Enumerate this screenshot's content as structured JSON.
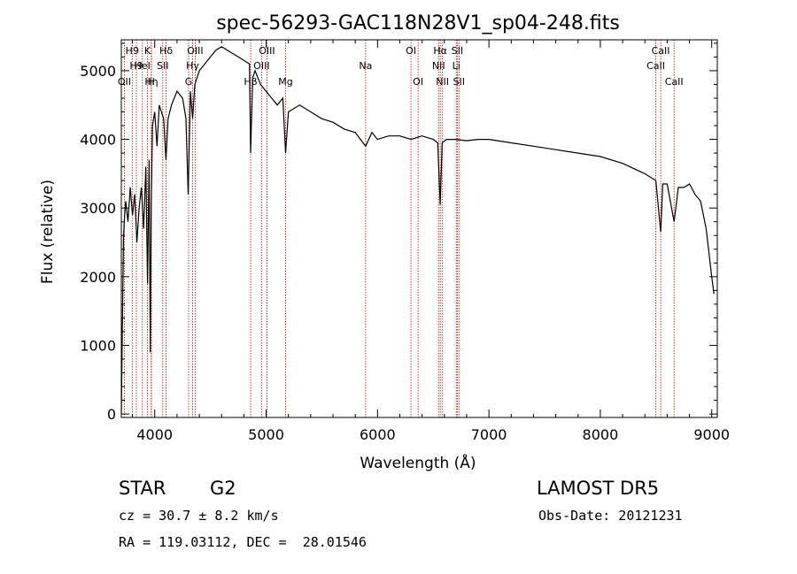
{
  "chart_data": {
    "type": "line",
    "title": "spec-56293-GAC118N28V1_sp04-248.fits",
    "xlabel": "Wavelength (Å)",
    "ylabel": "Flux (relative)",
    "xlim": [
      3700,
      9050
    ],
    "ylim": [
      -50,
      5450
    ],
    "xticks": [
      4000,
      5000,
      6000,
      7000,
      8000,
      9000
    ],
    "yticks": [
      0,
      1000,
      2000,
      3000,
      4000,
      5000
    ],
    "grid": false,
    "series": [
      {
        "x": [
          3700,
          3710,
          3720,
          3730,
          3740,
          3760,
          3780,
          3800,
          3820,
          3840,
          3860,
          3880,
          3900,
          3920,
          3935,
          3950,
          3960,
          3968,
          3980,
          4000,
          4020,
          4040,
          4060,
          4080,
          4101,
          4120,
          4150,
          4200,
          4250,
          4280,
          4300,
          4320,
          4340,
          4360,
          4400,
          4450,
          4500,
          4550,
          4600,
          4650,
          4700,
          4750,
          4800,
          4850,
          4861,
          4880,
          4900,
          4950,
          5000,
          5050,
          5100,
          5150,
          5175,
          5200,
          5300,
          5400,
          5500,
          5600,
          5700,
          5800,
          5893,
          5950,
          6000,
          6100,
          6200,
          6300,
          6400,
          6500,
          6540,
          6563,
          6580,
          6620,
          6700,
          6800,
          6900,
          7000,
          7200,
          7400,
          7600,
          7800,
          8000,
          8200,
          8400,
          8498,
          8542,
          8560,
          8600,
          8662,
          8700,
          8750,
          8800,
          8850,
          8900,
          8950,
          9000,
          9020
        ],
        "y": [
          0,
          1400,
          2600,
          2900,
          3100,
          2800,
          3300,
          2900,
          3200,
          2500,
          3000,
          3300,
          2700,
          3600,
          1900,
          3700,
          900,
          3000,
          4200,
          4400,
          3900,
          4500,
          4400,
          4300,
          3700,
          4300,
          4500,
          4700,
          4600,
          4300,
          3200,
          4700,
          4300,
          4800,
          5000,
          5100,
          5200,
          5300,
          5350,
          5300,
          5250,
          5200,
          5150,
          5100,
          3800,
          4900,
          5000,
          4800,
          4700,
          4600,
          4500,
          4600,
          3800,
          4400,
          4500,
          4400,
          4300,
          4250,
          4150,
          4100,
          3900,
          4100,
          4000,
          4050,
          4050,
          4000,
          4050,
          4000,
          3950,
          3050,
          3950,
          4000,
          4000,
          3980,
          4000,
          4000,
          3950,
          3900,
          3850,
          3800,
          3750,
          3650,
          3500,
          3400,
          2650,
          3350,
          3350,
          2800,
          3300,
          3300,
          3350,
          3200,
          3100,
          2700,
          2000,
          1750
        ]
      }
    ],
    "lines": [
      {
        "x": 3727,
        "label": "OII",
        "row": 2
      },
      {
        "x": 3798,
        "label": "H9",
        "row": 0
      },
      {
        "x": 3835,
        "label": "H9",
        "row": 1
      },
      {
        "x": 3889,
        "label": "HeI",
        "row": 1
      },
      {
        "x": 3934,
        "label": "K",
        "row": 0
      },
      {
        "x": 3970,
        "label": "Hη",
        "row": 2
      },
      {
        "x": 3968,
        "label": "H",
        "row": 2
      },
      {
        "x": 4072,
        "label": "SII",
        "row": 1
      },
      {
        "x": 4102,
        "label": "Hδ",
        "row": 0
      },
      {
        "x": 4304,
        "label": "G",
        "row": 2
      },
      {
        "x": 4340,
        "label": "Hγ",
        "row": 1
      },
      {
        "x": 4363,
        "label": "OIII",
        "row": 0
      },
      {
        "x": 4861,
        "label": "Hβ",
        "row": 2
      },
      {
        "x": 4959,
        "label": "OIII",
        "row": 1
      },
      {
        "x": 5007,
        "label": "OIII",
        "row": 0
      },
      {
        "x": 5175,
        "label": "Mg",
        "row": 2
      },
      {
        "x": 5893,
        "label": "Na",
        "row": 1
      },
      {
        "x": 6300,
        "label": "OI",
        "row": 0
      },
      {
        "x": 6364,
        "label": "OI",
        "row": 2
      },
      {
        "x": 6548,
        "label": "NII",
        "row": 1
      },
      {
        "x": 6563,
        "label": "Hα",
        "row": 0
      },
      {
        "x": 6583,
        "label": "NII",
        "row": 2
      },
      {
        "x": 6707,
        "label": "Li",
        "row": 1
      },
      {
        "x": 6716,
        "label": "SII",
        "row": 0
      },
      {
        "x": 6731,
        "label": "SII",
        "row": 2
      },
      {
        "x": 8498,
        "label": "CaII",
        "row": 1
      },
      {
        "x": 8542,
        "label": "CaII",
        "row": 0
      },
      {
        "x": 8662,
        "label": "CaII",
        "row": 2
      }
    ],
    "colors": {
      "spectrum": "#000000",
      "lines": "#cc0000",
      "axes": "#000000"
    }
  },
  "info": {
    "class": "STAR",
    "subclass": "G2",
    "survey": "LAMOST DR5",
    "cz": "cz = 30.7 ± 8.2 km/s",
    "obs_date": "Obs-Date: 20121231",
    "coords": "RA = 119.03112, DEC =  28.01546"
  }
}
